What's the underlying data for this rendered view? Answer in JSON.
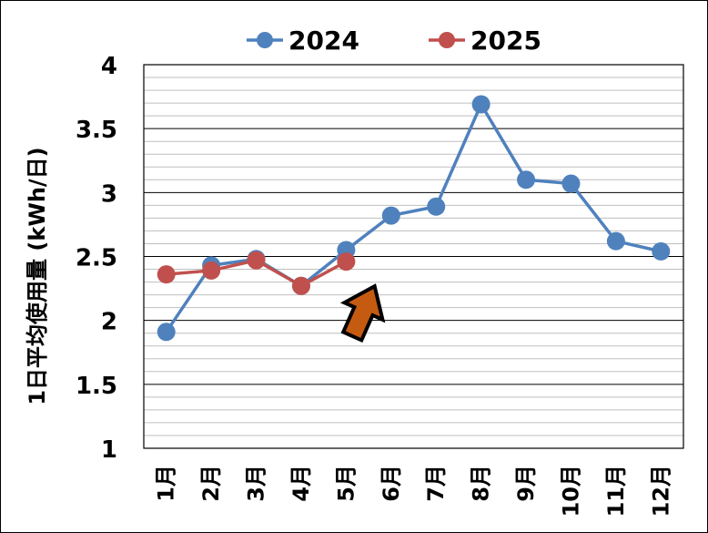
{
  "chart_data": {
    "type": "line",
    "title": "",
    "xlabel": "",
    "ylabel": "1日平均使用量 (kWh/日)",
    "categories": [
      "1月",
      "2月",
      "3月",
      "4月",
      "5月",
      "6月",
      "7月",
      "8月",
      "9月",
      "10月",
      "11月",
      "12月"
    ],
    "yticks": [
      "1",
      "1.5",
      "2",
      "2.5",
      "3",
      "3.5",
      "4"
    ],
    "ylim": [
      1,
      4
    ],
    "grid": true,
    "legend": "top-center",
    "series": [
      {
        "name": "2024",
        "color": "#4f81bd",
        "values": [
          1.91,
          2.43,
          2.48,
          2.27,
          2.55,
          2.82,
          2.89,
          3.69,
          3.1,
          3.07,
          2.62,
          2.54
        ]
      },
      {
        "name": "2025",
        "color": "#c0504d",
        "values": [
          2.36,
          2.39,
          2.47,
          2.27,
          2.46,
          null,
          null,
          null,
          null,
          null,
          null,
          null
        ]
      }
    ],
    "annotation": {
      "shape": "block-arrow",
      "color": "#c55a11",
      "points_to_category": "5月"
    }
  }
}
